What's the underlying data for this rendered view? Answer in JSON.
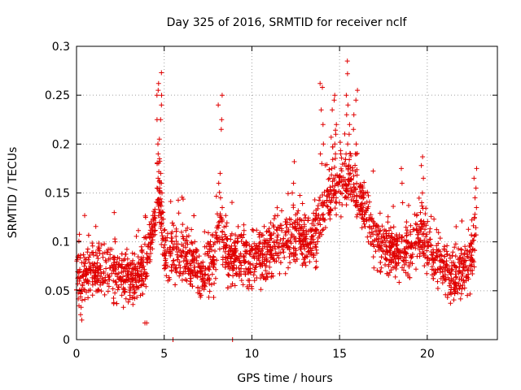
{
  "chart_data": {
    "type": "scatter",
    "title": "Day 325 of 2016, SRMTID for receiver nclf",
    "xlabel": "GPS time / hours",
    "ylabel": "SRMTID / TECUs",
    "xlim": [
      0,
      24
    ],
    "ylim": [
      0,
      0.3
    ],
    "xticks": [
      0,
      5,
      10,
      15,
      20
    ],
    "xtick_labels": [
      "0",
      "5",
      "10",
      "15",
      "20"
    ],
    "yticks": [
      0,
      0.05,
      0.1,
      0.15,
      0.2,
      0.25,
      0.3
    ],
    "ytick_labels": [
      "0",
      "0.05",
      "0.1",
      "0.15",
      "0.2",
      "0.25",
      "0.3"
    ],
    "grid": true,
    "marker": "+",
    "marker_color": "#e00000",
    "series": [
      {
        "name": "SRMTID",
        "x_range": [
          0.0,
          22.8
        ],
        "profile_note": "baseline ~0.05-0.09 TECU with scattered samples; notable activity near hour 4.7 (up to ~0.27), hour 8.2 (up to ~0.25), hours 14-16.5 (up to ~0.285), hour 19.7 (~0.19), hour 22.7 (~0.17)",
        "profile": [
          [
            0.0,
            0.06
          ],
          [
            1.0,
            0.07
          ],
          [
            2.0,
            0.07
          ],
          [
            3.0,
            0.06
          ],
          [
            3.8,
            0.07
          ],
          [
            4.2,
            0.1
          ],
          [
            4.7,
            0.15
          ],
          [
            5.0,
            0.09
          ],
          [
            6.0,
            0.085
          ],
          [
            7.0,
            0.07
          ],
          [
            7.8,
            0.08
          ],
          [
            8.2,
            0.12
          ],
          [
            8.6,
            0.085
          ],
          [
            10.0,
            0.085
          ],
          [
            11.0,
            0.09
          ],
          [
            12.0,
            0.105
          ],
          [
            13.0,
            0.1
          ],
          [
            13.7,
            0.11
          ],
          [
            14.5,
            0.15
          ],
          [
            15.5,
            0.17
          ],
          [
            16.3,
            0.14
          ],
          [
            17.0,
            0.1
          ],
          [
            18.0,
            0.09
          ],
          [
            19.0,
            0.09
          ],
          [
            19.7,
            0.11
          ],
          [
            20.5,
            0.08
          ],
          [
            21.5,
            0.065
          ],
          [
            22.3,
            0.07
          ],
          [
            22.8,
            0.1
          ]
        ],
        "spikes": [
          {
            "x": 4.75,
            "y_values": [
              0.273,
              0.262,
              0.255,
              0.25,
              0.24,
              0.225,
              0.205,
              0.2,
              0.185,
              0.17,
              0.16,
              0.15,
              0.14,
              0.13
            ]
          },
          {
            "x": 4.55,
            "y_values": [
              0.25,
              0.225,
              0.19,
              0.18,
              0.165,
              0.155,
              0.14,
              0.125
            ]
          },
          {
            "x": 8.2,
            "y_values": [
              0.25,
              0.24,
              0.225,
              0.215,
              0.17,
              0.16,
              0.145,
              0.135,
              0.125
            ]
          },
          {
            "x": 14.0,
            "y_values": [
              0.262,
              0.258,
              0.235,
              0.22,
              0.2,
              0.19,
              0.18
            ]
          },
          {
            "x": 14.7,
            "y_values": [
              0.25,
              0.245,
              0.235,
              0.22,
              0.21,
              0.2,
              0.19
            ]
          },
          {
            "x": 15.5,
            "y_values": [
              0.285,
              0.272,
              0.25,
              0.24,
              0.23,
              0.22,
              0.21,
              0.2
            ]
          },
          {
            "x": 15.9,
            "y_values": [
              0.255,
              0.245,
              0.23,
              0.215,
              0.2,
              0.19
            ]
          },
          {
            "x": 19.7,
            "y_values": [
              0.187,
              0.178,
              0.165,
              0.15,
              0.14,
              0.13
            ]
          },
          {
            "x": 22.7,
            "y_values": [
              0.175,
              0.165,
              0.155,
              0.145,
              0.135,
              0.125
            ]
          },
          {
            "x": 12.3,
            "y_values": [
              0.182,
              0.16,
              0.15
            ]
          },
          {
            "x": 18.6,
            "y_values": [
              0.175,
              0.16,
              0.14
            ]
          }
        ],
        "low_points": [
          [
            0.3,
            0.02
          ],
          [
            4.0,
            0.017
          ],
          [
            3.9,
            0.017
          ],
          [
            5.5,
            0.0
          ],
          [
            8.9,
            0.0
          ]
        ]
      }
    ]
  }
}
